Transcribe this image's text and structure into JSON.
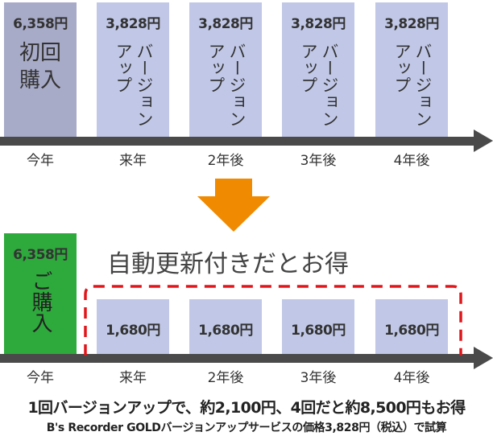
{
  "top": {
    "boxes": [
      {
        "price": "6,358円",
        "label": "初回購入"
      },
      {
        "price": "3,828円",
        "label": "バージョンアップ"
      },
      {
        "price": "3,828円",
        "label": "バージョンアップ"
      },
      {
        "price": "3,828円",
        "label": "バージョンアップ"
      },
      {
        "price": "3,828円",
        "label": "バージョンアップ"
      }
    ],
    "timeline": [
      "今年",
      "来年",
      "2年後",
      "3年後",
      "4年後"
    ]
  },
  "bottom": {
    "heading": "自動更新付きだとお得",
    "boxes": [
      {
        "price": "6,358円",
        "label": "ご購入"
      },
      {
        "price": "1,680円"
      },
      {
        "price": "1,680円"
      },
      {
        "price": "1,680円"
      },
      {
        "price": "1,680円"
      }
    ],
    "timeline": [
      "今年",
      "来年",
      "2年後",
      "3年後",
      "4年後"
    ]
  },
  "footer": {
    "line1": "1回バージョンアップで、約2,100円、4回だと約8,500円もお得",
    "line2": "B's Recorder GOLDバージョンアップサービスの価格3,828円（税込）で試算"
  }
}
